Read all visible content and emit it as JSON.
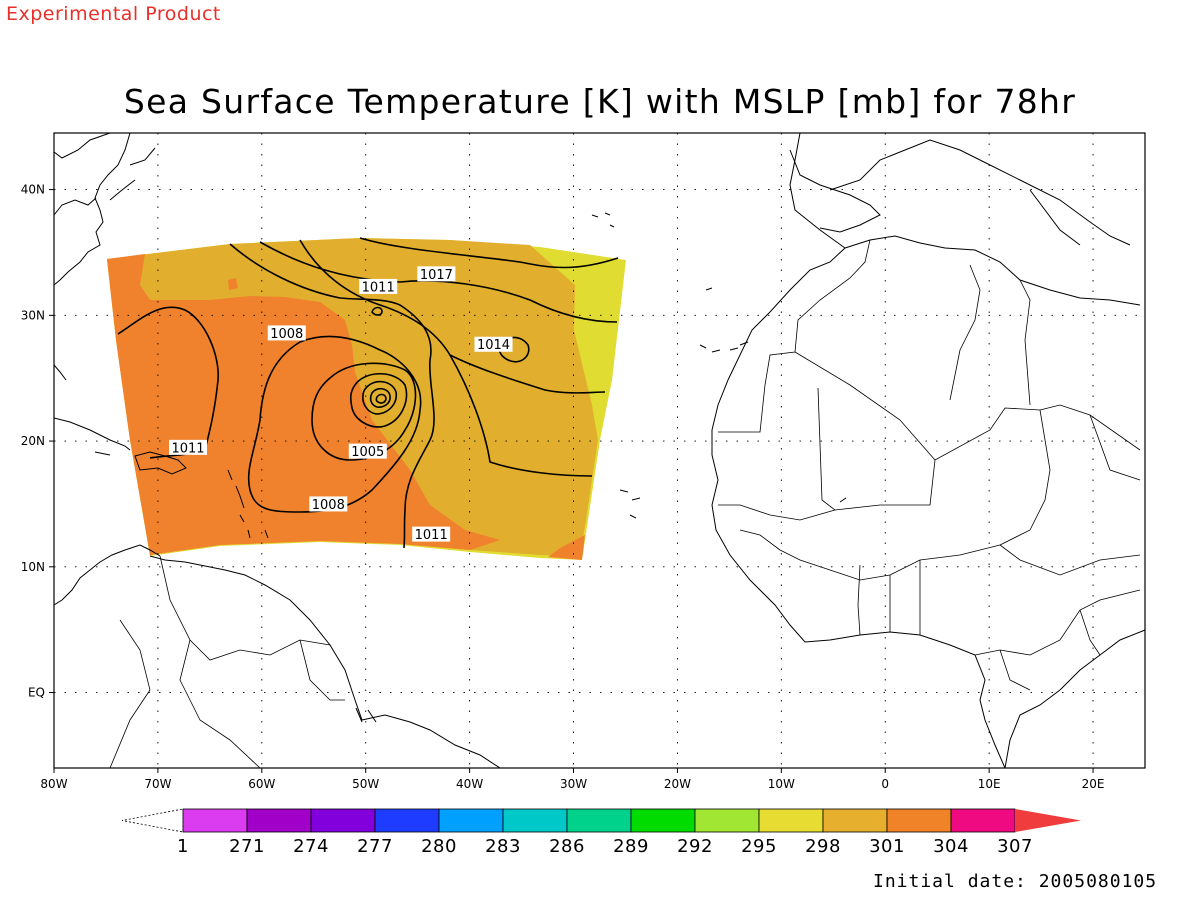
{
  "header": {
    "experimental": "Experimental Product",
    "title": "Sea Surface Temperature [K] with MSLP [mb] for 78hr",
    "initial_date": "Initial date: 2005080105"
  },
  "map": {
    "lon_range": [
      -80,
      25
    ],
    "lat_range": [
      -6,
      44.5
    ],
    "lon_ticks": [
      {
        "lon": -80,
        "label": "80W"
      },
      {
        "lon": -70,
        "label": "70W"
      },
      {
        "lon": -60,
        "label": "60W"
      },
      {
        "lon": -50,
        "label": "50W"
      },
      {
        "lon": -40,
        "label": "40W"
      },
      {
        "lon": -30,
        "label": "30W"
      },
      {
        "lon": -20,
        "label": "20W"
      },
      {
        "lon": -10,
        "label": "10W"
      },
      {
        "lon": 0,
        "label": "0"
      },
      {
        "lon": 10,
        "label": "10E"
      },
      {
        "lon": 20,
        "label": "20E"
      }
    ],
    "lat_ticks": [
      {
        "lat": 0,
        "label": "EQ"
      },
      {
        "lat": 10,
        "label": "10N"
      },
      {
        "lat": 20,
        "label": "20N"
      },
      {
        "lat": 30,
        "label": "30N"
      },
      {
        "lat": 40,
        "label": "40N"
      }
    ],
    "grid": true,
    "shading_colors": {
      "sst_298": "#e1dc32",
      "sst_301": "#e1af2d",
      "sst_304": "#f0822d"
    },
    "contour_labels": [
      {
        "value": "1017",
        "lon": -43.2,
        "lat": 33.3
      },
      {
        "value": "1011",
        "lon": -48.8,
        "lat": 32.3
      },
      {
        "value": "1008",
        "lon": -57.6,
        "lat": 28.6
      },
      {
        "value": "1014",
        "lon": -37.7,
        "lat": 27.7
      },
      {
        "value": "1011",
        "lon": -67.1,
        "lat": 19.5
      },
      {
        "value": "1005",
        "lon": -49.8,
        "lat": 19.2
      },
      {
        "value": "1008",
        "lon": -53.6,
        "lat": 15.0
      },
      {
        "value": "1011",
        "lon": -43.7,
        "lat": 12.6
      }
    ]
  },
  "colorbar": {
    "colors": [
      "#dc3cf0",
      "#a000c8",
      "#8200dc",
      "#1e3cff",
      "#00a0ff",
      "#00c8c8",
      "#00d28c",
      "#00dc00",
      "#a0e632",
      "#e6dc32",
      "#e6af2d",
      "#f08228",
      "#f00a82",
      "#f03c3c"
    ],
    "labels": [
      "1",
      "271",
      "274",
      "277",
      "280",
      "283",
      "286",
      "289",
      "292",
      "295",
      "298",
      "301",
      "304",
      "307"
    ]
  }
}
